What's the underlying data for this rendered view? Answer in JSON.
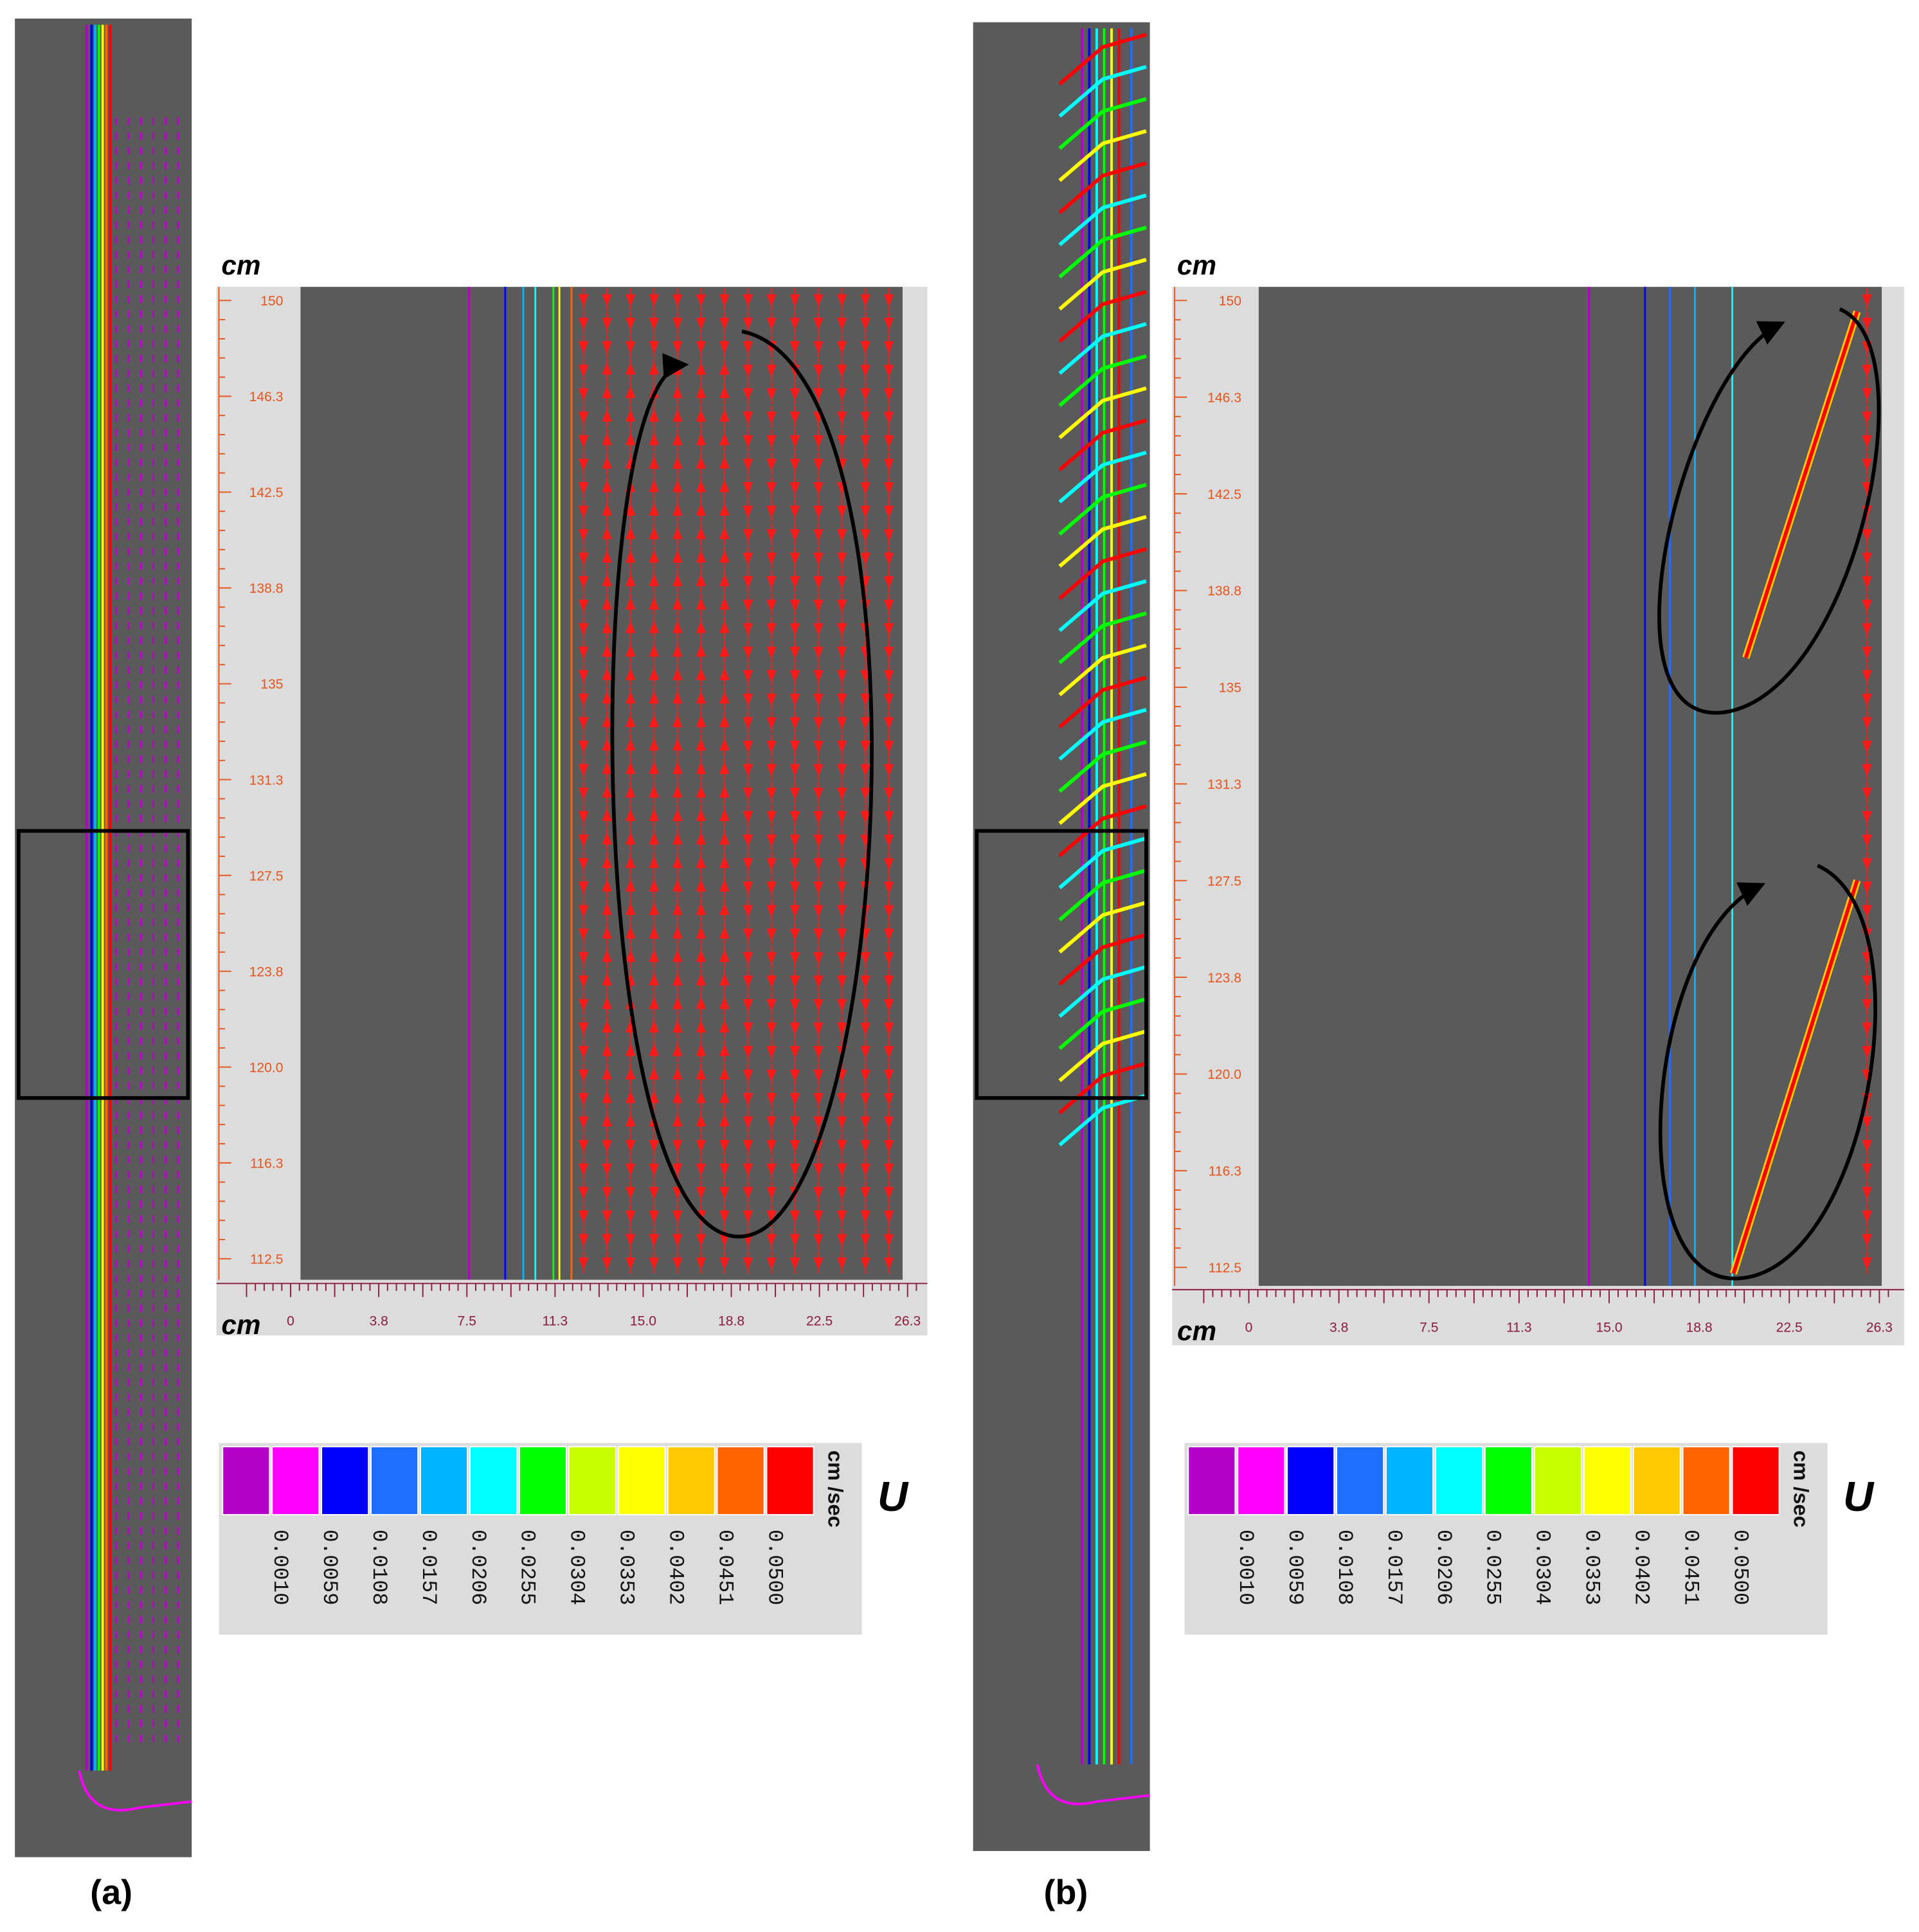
{
  "panels": [
    {
      "label": "(a)",
      "zoom": {
        "y_unit": "cm",
        "x_unit": "cm",
        "yticks": [
          "150",
          "146.3",
          "142.5",
          "138.8",
          "135",
          "131.3",
          "127.5",
          "123.8",
          "120.0",
          "116.3",
          "112.5"
        ],
        "xticks": [
          "0",
          "3.8",
          "7.5",
          "11.3",
          "15.0",
          "18.8",
          "22.5",
          "26.3"
        ]
      },
      "legend": {
        "values": [
          "0.0010",
          "0.0059",
          "0.0108",
          "0.0157",
          "0.0206",
          "0.0255",
          "0.0304",
          "0.0353",
          "0.0402",
          "0.0451",
          "0.0500"
        ],
        "unit": "cm /sec",
        "symbol": "U"
      }
    },
    {
      "label": "(b)",
      "zoom": {
        "y_unit": "cm",
        "x_unit": "cm",
        "yticks": [
          "150",
          "146.3",
          "142.5",
          "138.8",
          "135",
          "131.3",
          "127.5",
          "123.8",
          "120.0",
          "116.3",
          "112.5"
        ],
        "xticks": [
          "0",
          "3.8",
          "7.5",
          "11.3",
          "15.0",
          "18.8",
          "22.5",
          "26.3"
        ]
      },
      "legend": {
        "values": [
          "0.0010",
          "0.0059",
          "0.0108",
          "0.0157",
          "0.0206",
          "0.0255",
          "0.0304",
          "0.0353",
          "0.0402",
          "0.0451",
          "0.0500"
        ],
        "unit": "cm /sec",
        "symbol": "U"
      }
    }
  ]
}
